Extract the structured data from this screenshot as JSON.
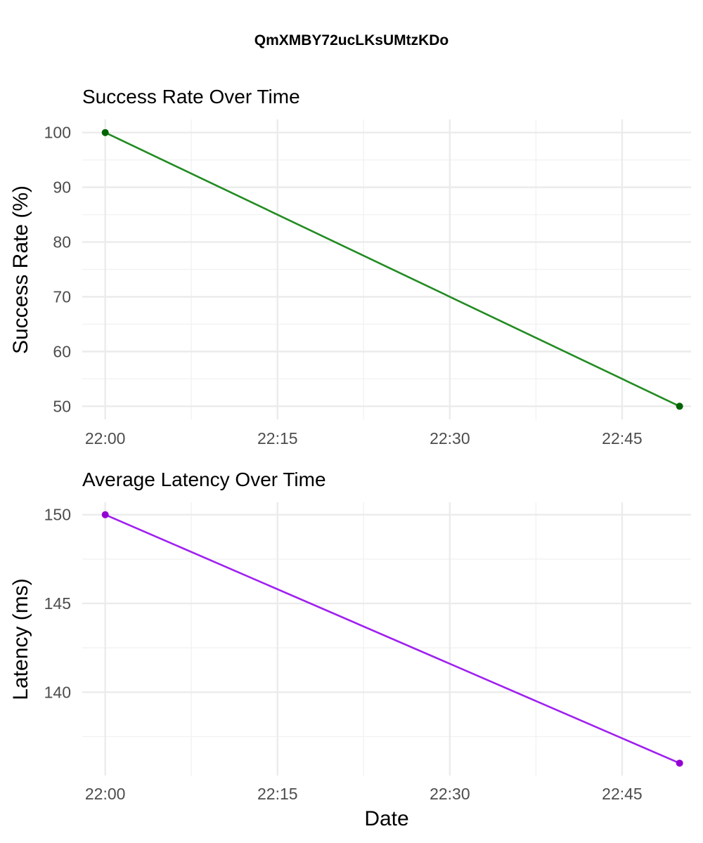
{
  "figure": {
    "title": "QmXMBY72ucLKsUMtzKDo"
  },
  "chart_data": [
    {
      "type": "line",
      "title": "Success Rate Over Time",
      "xlabel": "",
      "ylabel": "Success Rate (%)",
      "x": [
        "22:00",
        "22:50"
      ],
      "series": [
        {
          "values": [
            100,
            50
          ],
          "line_color": "#228B22",
          "point_color": "#006400"
        }
      ],
      "xlim": [
        "21:58",
        "22:51"
      ],
      "ylim": [
        47.6,
        102.4
      ],
      "x_ticks": [
        "22:00",
        "22:15",
        "22:30",
        "22:45"
      ],
      "y_ticks": [
        50,
        60,
        70,
        80,
        90,
        100
      ],
      "grid": true,
      "legend": "none"
    },
    {
      "type": "line",
      "title": "Average Latency Over Time",
      "xlabel": "Date",
      "ylabel": "Latency (ms)",
      "x": [
        "22:00",
        "22:50"
      ],
      "series": [
        {
          "values": [
            150,
            136
          ],
          "line_color": "#A020F0",
          "point_color": "#9400D3"
        }
      ],
      "xlim": [
        "21:58",
        "22:51"
      ],
      "ylim": [
        135.3,
        150.7
      ],
      "x_ticks": [
        "22:00",
        "22:15",
        "22:30",
        "22:45"
      ],
      "y_ticks": [
        140,
        145,
        150
      ],
      "grid": true,
      "legend": "none"
    }
  ]
}
